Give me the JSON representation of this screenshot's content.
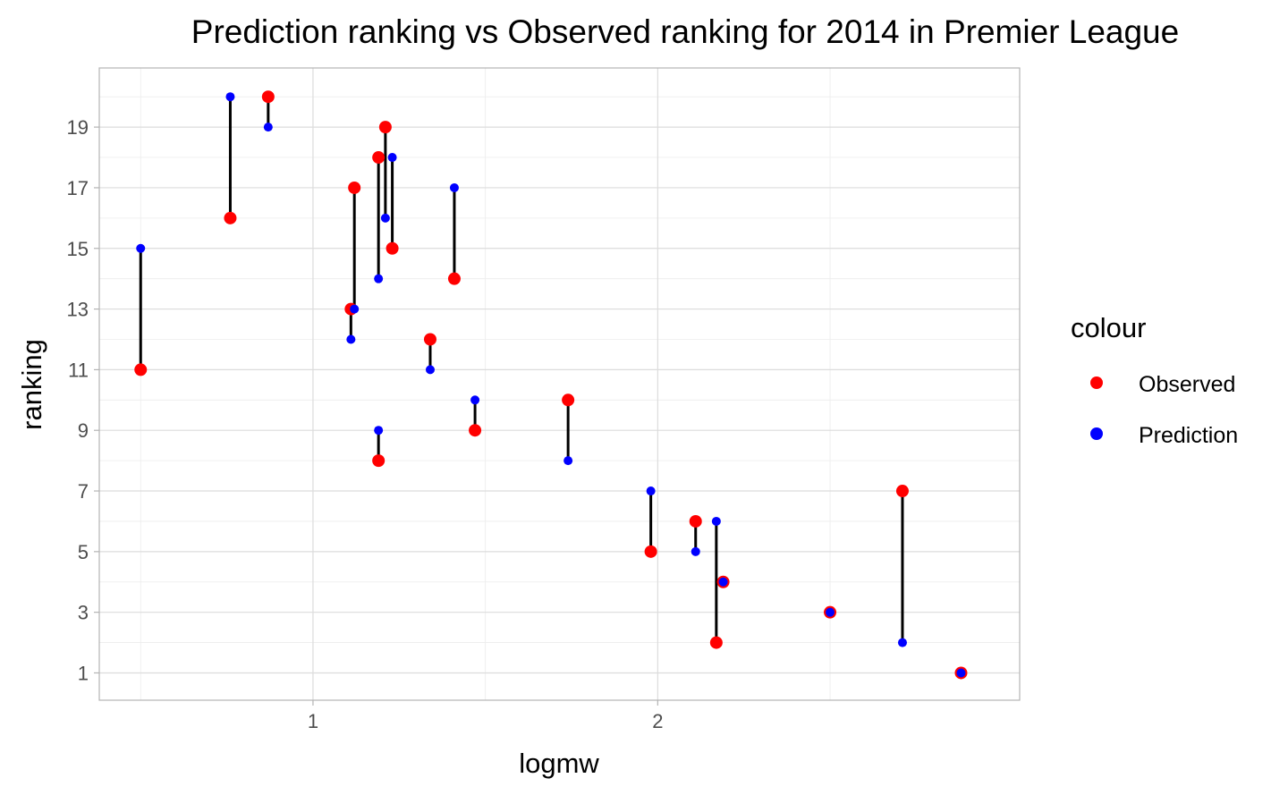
{
  "chart_data": {
    "type": "scatter",
    "title": "Prediction ranking vs Observed ranking for 2014 in Premier League",
    "xlabel": "logmw",
    "ylabel": "ranking",
    "xlim": [
      0.38,
      3.05
    ],
    "ylim": [
      0.1,
      20.95
    ],
    "x_ticks": [
      1,
      2
    ],
    "x_minor_ticks": [
      0.5,
      1.5,
      2.5
    ],
    "y_ticks": [
      1,
      3,
      5,
      7,
      9,
      11,
      13,
      15,
      17,
      19
    ],
    "y_minor_ticks": [
      2,
      4,
      6,
      8,
      10,
      12,
      14,
      16,
      18,
      20
    ],
    "grid": true,
    "legend": {
      "title": "colour",
      "placement": "right",
      "entries": [
        {
          "name": "Observed",
          "color": "#ff0000"
        },
        {
          "name": "Prediction",
          "color": "#0000ff"
        }
      ]
    },
    "series": [
      {
        "name": "Observed",
        "color": "#ff0000",
        "points": [
          {
            "x": 0.5,
            "y": 11
          },
          {
            "x": 0.76,
            "y": 16
          },
          {
            "x": 0.87,
            "y": 20
          },
          {
            "x": 1.11,
            "y": 13
          },
          {
            "x": 1.12,
            "y": 17
          },
          {
            "x": 1.19,
            "y": 18
          },
          {
            "x": 1.21,
            "y": 19
          },
          {
            "x": 1.23,
            "y": 15
          },
          {
            "x": 1.19,
            "y": 8
          },
          {
            "x": 1.34,
            "y": 12
          },
          {
            "x": 1.41,
            "y": 14
          },
          {
            "x": 1.47,
            "y": 9
          },
          {
            "x": 1.74,
            "y": 10
          },
          {
            "x": 1.98,
            "y": 5
          },
          {
            "x": 2.11,
            "y": 6
          },
          {
            "x": 2.17,
            "y": 2
          },
          {
            "x": 2.19,
            "y": 4
          },
          {
            "x": 2.5,
            "y": 3
          },
          {
            "x": 2.71,
            "y": 7
          },
          {
            "x": 2.88,
            "y": 1
          }
        ]
      },
      {
        "name": "Prediction",
        "color": "#0000ff",
        "points": [
          {
            "x": 0.5,
            "y": 15
          },
          {
            "x": 0.76,
            "y": 20
          },
          {
            "x": 0.87,
            "y": 19
          },
          {
            "x": 1.11,
            "y": 12
          },
          {
            "x": 1.12,
            "y": 13
          },
          {
            "x": 1.19,
            "y": 14
          },
          {
            "x": 1.21,
            "y": 16
          },
          {
            "x": 1.23,
            "y": 18
          },
          {
            "x": 1.19,
            "y": 9
          },
          {
            "x": 1.34,
            "y": 11
          },
          {
            "x": 1.41,
            "y": 17
          },
          {
            "x": 1.47,
            "y": 10
          },
          {
            "x": 1.74,
            "y": 8
          },
          {
            "x": 1.98,
            "y": 7
          },
          {
            "x": 2.11,
            "y": 5
          },
          {
            "x": 2.17,
            "y": 6
          },
          {
            "x": 2.19,
            "y": 4
          },
          {
            "x": 2.5,
            "y": 3
          },
          {
            "x": 2.71,
            "y": 2
          },
          {
            "x": 2.88,
            "y": 1
          }
        ]
      }
    ]
  }
}
